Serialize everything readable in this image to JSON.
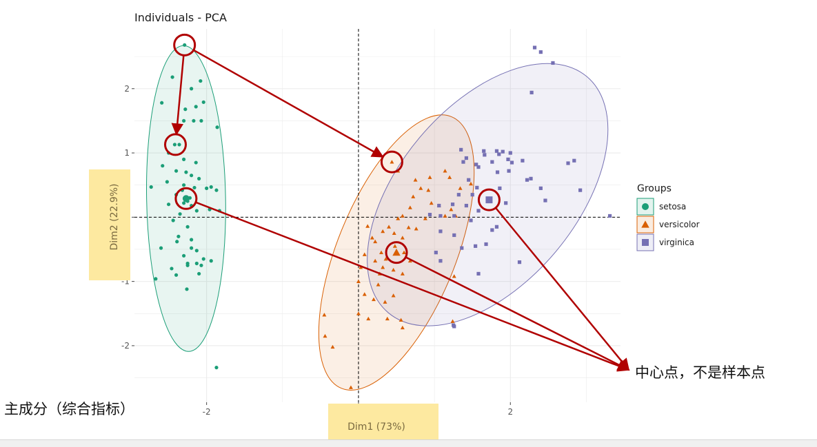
{
  "chart_data": {
    "type": "scatter",
    "title": "Individuals - PCA",
    "xlabel": "Dim1 (73%)",
    "ylabel": "Dim2 (22.9%)",
    "xlim": [
      -2.95,
      3.45
    ],
    "ylim": [
      -2.88,
      2.93
    ],
    "x_ticks": [
      -2,
      0,
      2
    ],
    "y_ticks": [
      -2,
      -1,
      0,
      1,
      2
    ],
    "grid": true,
    "reference_lines": {
      "x": 0,
      "y": 0
    },
    "legend": {
      "title": "Groups",
      "position": "right",
      "entries": [
        "setosa",
        "versicolor",
        "virginica"
      ]
    },
    "series": [
      {
        "name": "setosa",
        "marker": "circle",
        "color": "#1b9e77",
        "centroid": [
          -2.27,
          0.29
        ],
        "ellipse": {
          "cx": -2.27,
          "cy": 0.29,
          "rx": 0.52,
          "ry": 2.38,
          "angle": -1
        },
        "points": [
          [
            -2.29,
            2.68
          ],
          [
            -2.45,
            2.18
          ],
          [
            -2.59,
            1.78
          ],
          [
            -2.2,
            2.0
          ],
          [
            -2.14,
            1.72
          ],
          [
            -2.08,
            2.12
          ],
          [
            -2.04,
            1.79
          ],
          [
            -2.28,
            1.68
          ],
          [
            -2.3,
            1.5
          ],
          [
            -2.17,
            1.5
          ],
          [
            -2.07,
            1.5
          ],
          [
            -1.86,
            1.4
          ],
          [
            -2.42,
            1.13
          ],
          [
            -2.36,
            1.13
          ],
          [
            -2.5,
            1.0
          ],
          [
            -2.3,
            0.9
          ],
          [
            -2.14,
            0.85
          ],
          [
            -2.58,
            0.8
          ],
          [
            -2.4,
            0.72
          ],
          [
            -2.27,
            0.7
          ],
          [
            -2.2,
            0.65
          ],
          [
            -2.1,
            0.6
          ],
          [
            -2.52,
            0.55
          ],
          [
            -2.3,
            0.5
          ],
          [
            -2.73,
            0.47
          ],
          [
            -2.16,
            0.46
          ],
          [
            -1.94,
            0.47
          ],
          [
            -2.0,
            0.45
          ],
          [
            -1.87,
            0.42
          ],
          [
            -2.32,
            0.42
          ],
          [
            -2.4,
            0.35
          ],
          [
            -2.22,
            0.3
          ],
          [
            -2.28,
            0.28
          ],
          [
            -2.25,
            0.25
          ],
          [
            -2.3,
            0.22
          ],
          [
            -2.2,
            0.18
          ],
          [
            -2.5,
            0.2
          ],
          [
            -2.13,
            0.1
          ],
          [
            -1.96,
            0.12
          ],
          [
            -1.83,
            0.1
          ],
          [
            -2.35,
            0.05
          ],
          [
            -2.44,
            -0.05
          ],
          [
            -2.25,
            -0.15
          ],
          [
            -2.37,
            -0.3
          ],
          [
            -2.2,
            -0.35
          ],
          [
            -2.39,
            -0.38
          ],
          [
            -2.6,
            -0.48
          ],
          [
            -2.2,
            -0.48
          ],
          [
            -2.13,
            -0.52
          ],
          [
            -2.3,
            -0.6
          ],
          [
            -2.04,
            -0.65
          ],
          [
            -2.13,
            -0.72
          ],
          [
            -2.25,
            -0.72
          ],
          [
            -1.94,
            -0.68
          ],
          [
            -2.07,
            -0.75
          ],
          [
            -2.46,
            -0.8
          ],
          [
            -2.25,
            -0.75
          ],
          [
            -2.1,
            -0.88
          ],
          [
            -2.67,
            -0.96
          ],
          [
            -2.4,
            -0.9
          ],
          [
            -2.26,
            -1.12
          ],
          [
            -1.87,
            -2.34
          ]
        ]
      },
      {
        "name": "versicolor",
        "marker": "triangle",
        "color": "#d95f02",
        "centroid": [
          0.5,
          -0.55
        ],
        "ellipse": {
          "cx": 0.5,
          "cy": -0.55,
          "rx": 0.78,
          "ry": 2.28,
          "angle": 22
        },
        "points": [
          [
            0.44,
            0.86
          ],
          [
            0.52,
            0.72
          ],
          [
            0.75,
            0.58
          ],
          [
            0.94,
            0.62
          ],
          [
            1.2,
            0.62
          ],
          [
            1.14,
            0.72
          ],
          [
            1.48,
            0.52
          ],
          [
            0.82,
            0.45
          ],
          [
            1.34,
            0.45
          ],
          [
            0.92,
            0.42
          ],
          [
            0.72,
            0.32
          ],
          [
            0.96,
            0.22
          ],
          [
            1.06,
            0.18
          ],
          [
            0.68,
            0.15
          ],
          [
            1.22,
            0.12
          ],
          [
            1.28,
            0.02
          ],
          [
            0.58,
            0.02
          ],
          [
            0.52,
            -0.02
          ],
          [
            0.88,
            -0.02
          ],
          [
            1.14,
            0.02
          ],
          [
            0.12,
            -0.14
          ],
          [
            0.4,
            -0.15
          ],
          [
            0.66,
            -0.16
          ],
          [
            0.76,
            -0.18
          ],
          [
            0.32,
            -0.22
          ],
          [
            0.47,
            -0.25
          ],
          [
            0.18,
            -0.32
          ],
          [
            0.58,
            -0.32
          ],
          [
            0.22,
            -0.38
          ],
          [
            0.48,
            -0.45
          ],
          [
            0.6,
            -0.55
          ],
          [
            0.08,
            -0.58
          ],
          [
            0.3,
            -0.55
          ],
          [
            0.36,
            -0.65
          ],
          [
            0.22,
            -0.68
          ],
          [
            0.68,
            -0.68
          ],
          [
            0.03,
            -0.78
          ],
          [
            0.32,
            -0.78
          ],
          [
            0.46,
            -0.82
          ],
          [
            0.28,
            -0.88
          ],
          [
            0.58,
            -0.88
          ],
          [
            0.0,
            -1.0
          ],
          [
            0.26,
            -1.05
          ],
          [
            1.26,
            -0.92
          ],
          [
            0.46,
            -1.22
          ],
          [
            0.08,
            -1.2
          ],
          [
            0.2,
            -1.28
          ],
          [
            0.35,
            -1.32
          ],
          [
            0.0,
            -1.5
          ],
          [
            0.13,
            -1.58
          ],
          [
            -0.45,
            -1.52
          ],
          [
            0.38,
            -1.58
          ],
          [
            0.58,
            -1.72
          ],
          [
            -0.44,
            -1.85
          ],
          [
            1.24,
            -1.62
          ],
          [
            -0.34,
            -2.02
          ],
          [
            -0.1,
            -2.65
          ],
          [
            0.56,
            -1.6
          ]
        ]
      },
      {
        "name": "virginica",
        "marker": "square",
        "color": "#7570b3",
        "centroid": [
          1.72,
          0.27
        ],
        "ellipse": {
          "cx": 1.7,
          "cy": 0.35,
          "rx": 1.17,
          "ry": 2.4,
          "angle": 40
        },
        "points": [
          [
            2.32,
            2.64
          ],
          [
            2.4,
            2.57
          ],
          [
            2.56,
            2.4
          ],
          [
            2.28,
            1.94
          ],
          [
            1.35,
            1.05
          ],
          [
            1.65,
            1.03
          ],
          [
            1.82,
            1.03
          ],
          [
            1.9,
            1.02
          ],
          [
            1.85,
            0.98
          ],
          [
            1.66,
            0.97
          ],
          [
            2.0,
            1.0
          ],
          [
            1.97,
            0.9
          ],
          [
            2.16,
            0.88
          ],
          [
            2.84,
            0.88
          ],
          [
            2.76,
            0.84
          ],
          [
            2.02,
            0.85
          ],
          [
            1.76,
            0.86
          ],
          [
            1.55,
            0.82
          ],
          [
            1.38,
            0.86
          ],
          [
            1.42,
            0.92
          ],
          [
            1.58,
            0.78
          ],
          [
            1.83,
            0.7
          ],
          [
            1.98,
            0.72
          ],
          [
            2.27,
            0.6
          ],
          [
            2.22,
            0.58
          ],
          [
            1.45,
            0.58
          ],
          [
            1.56,
            0.46
          ],
          [
            1.86,
            0.45
          ],
          [
            2.4,
            0.45
          ],
          [
            2.92,
            0.42
          ],
          [
            1.5,
            0.35
          ],
          [
            1.32,
            0.35
          ],
          [
            1.72,
            0.28
          ],
          [
            1.94,
            0.22
          ],
          [
            2.46,
            0.26
          ],
          [
            1.06,
            0.18
          ],
          [
            1.24,
            0.2
          ],
          [
            1.42,
            0.18
          ],
          [
            1.58,
            0.1
          ],
          [
            0.94,
            0.04
          ],
          [
            1.08,
            0.02
          ],
          [
            1.26,
            0.02
          ],
          [
            3.31,
            0.02
          ],
          [
            1.48,
            -0.05
          ],
          [
            1.82,
            -0.15
          ],
          [
            1.76,
            -0.2
          ],
          [
            1.08,
            -0.22
          ],
          [
            1.26,
            -0.28
          ],
          [
            1.54,
            -0.45
          ],
          [
            1.68,
            -0.42
          ],
          [
            1.36,
            -0.48
          ],
          [
            1.02,
            -0.55
          ],
          [
            1.08,
            -0.68
          ],
          [
            2.12,
            -0.7
          ],
          [
            1.58,
            -0.88
          ],
          [
            1.26,
            -1.7
          ],
          [
            1.25,
            -1.68
          ]
        ]
      }
    ],
    "annotations": [
      {
        "text": "中心点，不是样本点",
        "kind": "callout",
        "points_to": [
          [
            -2.27,
            0.29
          ],
          [
            0.5,
            -0.55
          ],
          [
            1.72,
            0.27
          ]
        ]
      },
      {
        "text": "主成分（综合指标）",
        "kind": "label",
        "points_to": "axes"
      }
    ],
    "highlighted_points": [
      [
        -2.29,
        2.68
      ],
      [
        -2.41,
        1.13
      ],
      [
        0.44,
        0.86
      ],
      [
        -2.27,
        0.29
      ],
      [
        0.5,
        -0.55
      ],
      [
        1.72,
        0.27
      ]
    ],
    "arrows": [
      {
        "from": [
          -2.29,
          2.68
        ],
        "to": [
          -2.41,
          1.13
        ]
      },
      {
        "from": [
          -2.29,
          2.68
        ],
        "to": [
          0.44,
          0.86
        ]
      }
    ]
  },
  "colors": {
    "setosa": "#1b9e77",
    "versicolor": "#d95f02",
    "virginica": "#7570b3",
    "highlight": "#b00000",
    "axis_label_bg": "#fde9a0",
    "panel_grid": "#ebebeb"
  }
}
